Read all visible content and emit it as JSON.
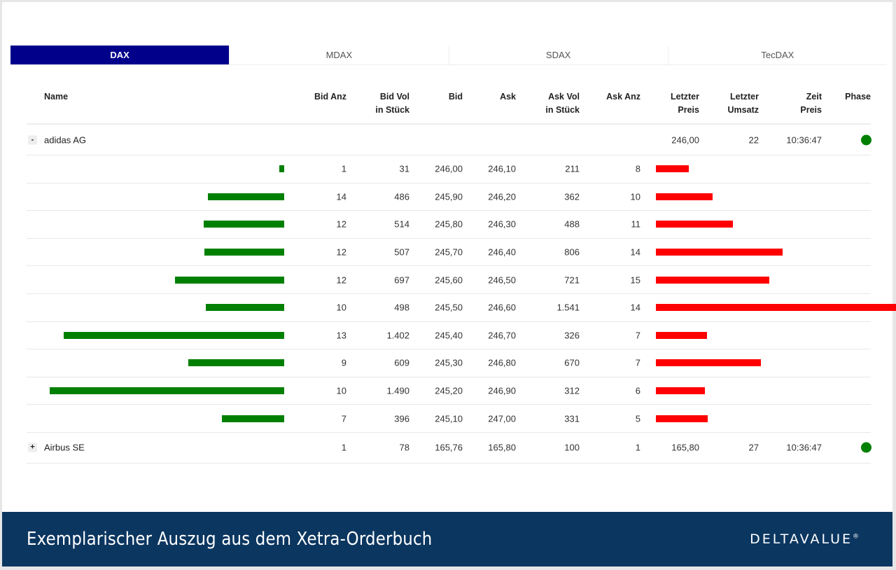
{
  "tabs": [
    "DAX",
    "MDAX",
    "SDAX",
    "TecDAX"
  ],
  "columns": {
    "name": "Name",
    "bid_anz": "Bid Anz",
    "bid_vol_1": "Bid Vol",
    "bid_vol_2": "in Stück",
    "bid": "Bid",
    "ask": "Ask",
    "ask_vol_1": "Ask Vol",
    "ask_vol_2": "in Stück",
    "ask_anz": "Ask Anz",
    "letzter_preis_1": "Letzter",
    "letzter_preis_2": "Preis",
    "letzter_umsatz_1": "Letzter",
    "letzter_umsatz_2": "Umsatz",
    "zeit_1": "Zeit",
    "zeit_2": "Preis",
    "phase": "Phase"
  },
  "stocks": [
    {
      "toggle": "-",
      "name": "adidas AG",
      "last_price": "246,00",
      "last_volume": "22",
      "time": "10:36:47",
      "phase_color": "#008000",
      "levels": [
        {
          "bid_anz": "1",
          "bid_vol": "31",
          "bid": "246,00",
          "ask": "246,10",
          "ask_vol": "211",
          "ask_anz": "8"
        },
        {
          "bid_anz": "14",
          "bid_vol": "486",
          "bid": "245,90",
          "ask": "246,20",
          "ask_vol": "362",
          "ask_anz": "10"
        },
        {
          "bid_anz": "12",
          "bid_vol": "514",
          "bid": "245,80",
          "ask": "246,30",
          "ask_vol": "488",
          "ask_anz": "11"
        },
        {
          "bid_anz": "12",
          "bid_vol": "507",
          "bid": "245,70",
          "ask": "246,40",
          "ask_vol": "806",
          "ask_anz": "14"
        },
        {
          "bid_anz": "12",
          "bid_vol": "697",
          "bid": "245,60",
          "ask": "246,50",
          "ask_vol": "721",
          "ask_anz": "15"
        },
        {
          "bid_anz": "10",
          "bid_vol": "498",
          "bid": "245,50",
          "ask": "246,60",
          "ask_vol": "1.541",
          "ask_anz": "14"
        },
        {
          "bid_anz": "13",
          "bid_vol": "1.402",
          "bid": "245,40",
          "ask": "246,70",
          "ask_vol": "326",
          "ask_anz": "7"
        },
        {
          "bid_anz": "9",
          "bid_vol": "609",
          "bid": "245,30",
          "ask": "246,80",
          "ask_vol": "670",
          "ask_anz": "7"
        },
        {
          "bid_anz": "10",
          "bid_vol": "1.490",
          "bid": "245,20",
          "ask": "246,90",
          "ask_vol": "312",
          "ask_anz": "6"
        },
        {
          "bid_anz": "7",
          "bid_vol": "396",
          "bid": "245,10",
          "ask": "247,00",
          "ask_vol": "331",
          "ask_anz": "5"
        }
      ]
    },
    {
      "toggle": "+",
      "name": "Airbus SE",
      "bid_anz": "1",
      "bid_vol": "78",
      "bid": "165,76",
      "ask": "165,80",
      "ask_vol": "100",
      "ask_anz": "1",
      "last_price": "165,80",
      "last_volume": "27",
      "time": "10:36:47",
      "phase_color": "#008000"
    }
  ],
  "colors": {
    "active_tab": "#00008b",
    "bid_bar": "#008000",
    "ask_bar": "#ff0000",
    "footer": "#0b3660"
  },
  "footer": {
    "title": "Exemplarischer Auszug aus dem Xetra-Orderbuch",
    "brand": "DELTAVALUE",
    "brand_mark": "®"
  }
}
